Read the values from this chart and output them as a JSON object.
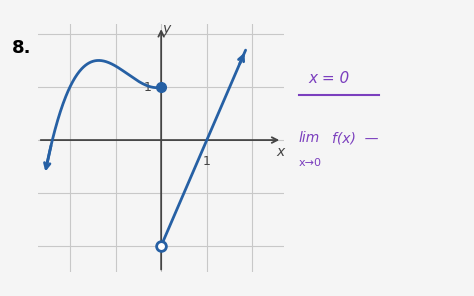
{
  "title_number": "8.",
  "background_color": "#f5f5f5",
  "plot_bg": "#ffffff",
  "grid_color": "#c8c8c8",
  "axis_color": "#444444",
  "curve_color": "#2660a4",
  "xlim": [
    -2.7,
    2.7
  ],
  "ylim": [
    -2.5,
    2.2
  ],
  "filled_dot": [
    0,
    1
  ],
  "open_circle": [
    0,
    -2
  ],
  "handwriting_color": "#7b3fbe",
  "annotation_x": "x = 0",
  "annotation_lim": "lim   f(x)  —",
  "annotation_sub": "x→0"
}
